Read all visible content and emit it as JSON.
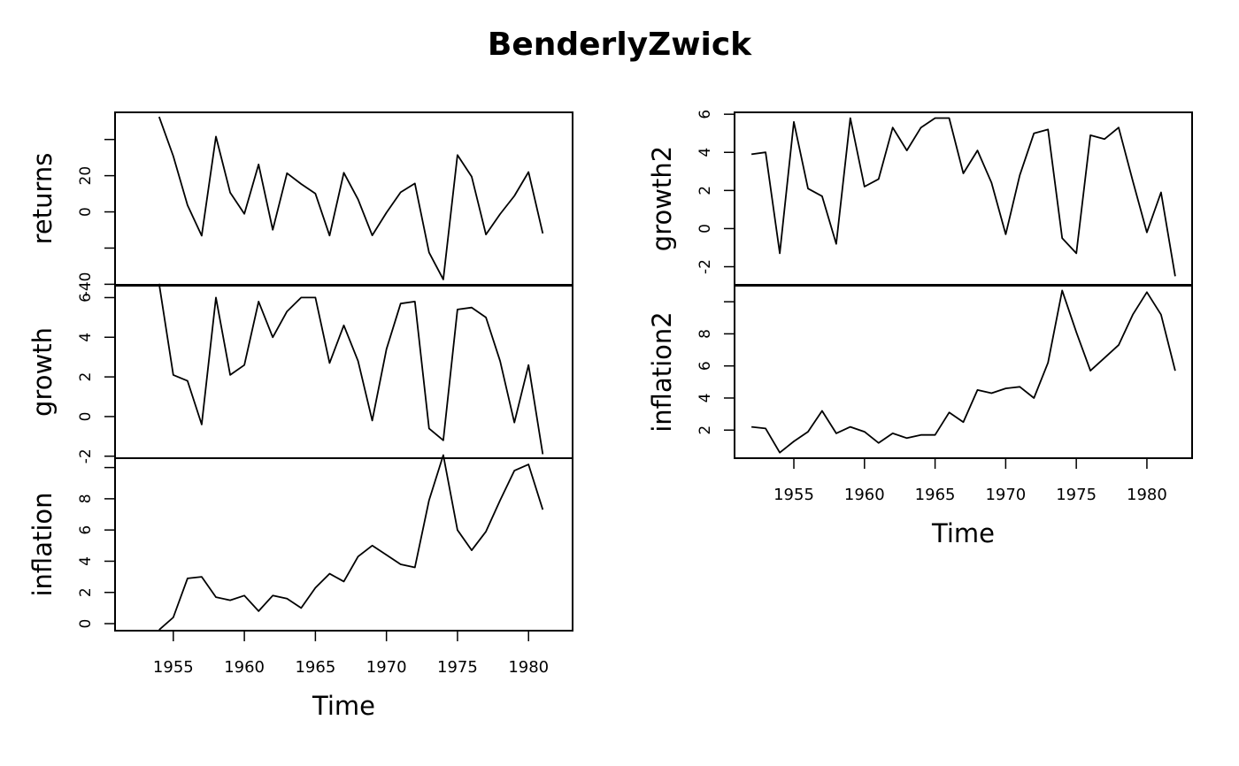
{
  "title": "BenderlyZwick",
  "chart_data": [
    {
      "type": "line",
      "name": "left-column",
      "xlabel": "Time",
      "x_ticks": [
        "1955",
        "1960",
        "1965",
        "1970",
        "1975",
        "1980"
      ],
      "x_tick_values": [
        1955,
        1960,
        1965,
        1970,
        1975,
        1980
      ],
      "xlim": [
        1950.9,
        1983.1
      ],
      "x": [
        1954,
        1955,
        1956,
        1957,
        1958,
        1959,
        1960,
        1961,
        1962,
        1963,
        1964,
        1965,
        1966,
        1967,
        1968,
        1969,
        1970,
        1971,
        1972,
        1973,
        1974,
        1975,
        1976,
        1977,
        1978,
        1979,
        1980,
        1981
      ],
      "panels": [
        {
          "ylabel": "returns",
          "ylim": [
            -40.3,
            55
          ],
          "y_ticks": [
            "-40",
            "",
            "0",
            "20",
            ""
          ],
          "y_tick_values": [
            -40,
            -20,
            0,
            20,
            40
          ],
          "values": [
            52.5,
            30.8,
            3.7,
            -13.2,
            41.6,
            10.6,
            -1.1,
            26.2,
            -9.9,
            21.4,
            15.4,
            10.1,
            -13.1,
            21.6,
            6.9,
            -13.0,
            -0.4,
            10.8,
            15.7,
            -22.4,
            -37.3,
            31.4,
            19.4,
            -12.5,
            -1.2,
            8.8,
            22.0,
            -11.9
          ]
        },
        {
          "ylabel": "growth",
          "ylim": [
            -2.1,
            6.6
          ],
          "y_ticks": [
            "-2",
            "0",
            "2",
            "4",
            "6"
          ],
          "y_tick_values": [
            -2,
            0,
            2,
            4,
            6
          ],
          "values": [
            6.7,
            2.1,
            1.8,
            -0.4,
            6.0,
            2.1,
            2.6,
            5.8,
            4.0,
            5.3,
            6.0,
            6.0,
            2.7,
            4.6,
            2.8,
            -0.2,
            3.4,
            5.7,
            5.8,
            -0.6,
            -1.2,
            5.4,
            5.5,
            5.0,
            2.8,
            -0.3,
            2.6,
            -1.9
          ]
        },
        {
          "ylabel": "inflation",
          "ylim": [
            -0.45,
            10.6
          ],
          "y_ticks": [
            "0",
            "2",
            "4",
            "6",
            "8",
            ""
          ],
          "y_tick_values": [
            0,
            2,
            4,
            6,
            8,
            10
          ],
          "values": [
            -0.4,
            0.4,
            2.9,
            3.0,
            1.7,
            1.5,
            1.8,
            0.8,
            1.8,
            1.6,
            1.0,
            2.3,
            3.2,
            2.7,
            4.3,
            5.0,
            4.4,
            3.8,
            3.6,
            7.9,
            10.8,
            6.0,
            4.7,
            5.9,
            7.9,
            9.8,
            10.2,
            7.3
          ]
        }
      ]
    },
    {
      "type": "line",
      "name": "right-column",
      "xlabel": "Time",
      "x_ticks": [
        "1955",
        "1960",
        "1965",
        "1970",
        "1975",
        "1980"
      ],
      "x_tick_values": [
        1955,
        1960,
        1965,
        1970,
        1975,
        1980
      ],
      "xlim": [
        1950.8,
        1983.2
      ],
      "x": [
        1952,
        1953,
        1954,
        1955,
        1956,
        1957,
        1958,
        1959,
        1960,
        1961,
        1962,
        1963,
        1964,
        1965,
        1966,
        1967,
        1968,
        1969,
        1970,
        1971,
        1972,
        1973,
        1974,
        1975,
        1976,
        1977,
        1978,
        1979,
        1980,
        1981,
        1982
      ],
      "panels": [
        {
          "ylabel": "growth2",
          "ylim": [
            -2.95,
            6.1
          ],
          "y_ticks": [
            "-2",
            "0",
            "2",
            "4",
            "6"
          ],
          "y_tick_values": [
            -2,
            0,
            2,
            4,
            6
          ],
          "values": [
            3.9,
            4.0,
            -1.3,
            5.6,
            2.1,
            1.7,
            -0.8,
            5.8,
            2.2,
            2.6,
            5.3,
            4.1,
            5.3,
            5.8,
            5.8,
            2.9,
            4.1,
            2.4,
            -0.3,
            2.8,
            5.0,
            5.2,
            -0.5,
            -1.3,
            4.9,
            4.7,
            5.3,
            2.5,
            -0.2,
            1.9,
            -2.5
          ]
        },
        {
          "ylabel": "inflation2",
          "ylim": [
            0.25,
            11.0
          ],
          "y_ticks": [
            "2",
            "4",
            "6",
            "8",
            ""
          ],
          "y_tick_values": [
            2,
            4,
            6,
            8,
            10
          ],
          "values": [
            2.2,
            2.1,
            0.6,
            1.3,
            1.9,
            3.2,
            1.8,
            2.2,
            1.9,
            1.2,
            1.8,
            1.5,
            1.7,
            1.7,
            3.1,
            2.5,
            4.5,
            4.3,
            4.6,
            4.7,
            4.0,
            6.2,
            10.7,
            8.1,
            5.7,
            6.5,
            7.3,
            9.2,
            10.6,
            9.2,
            5.7
          ]
        }
      ]
    }
  ]
}
